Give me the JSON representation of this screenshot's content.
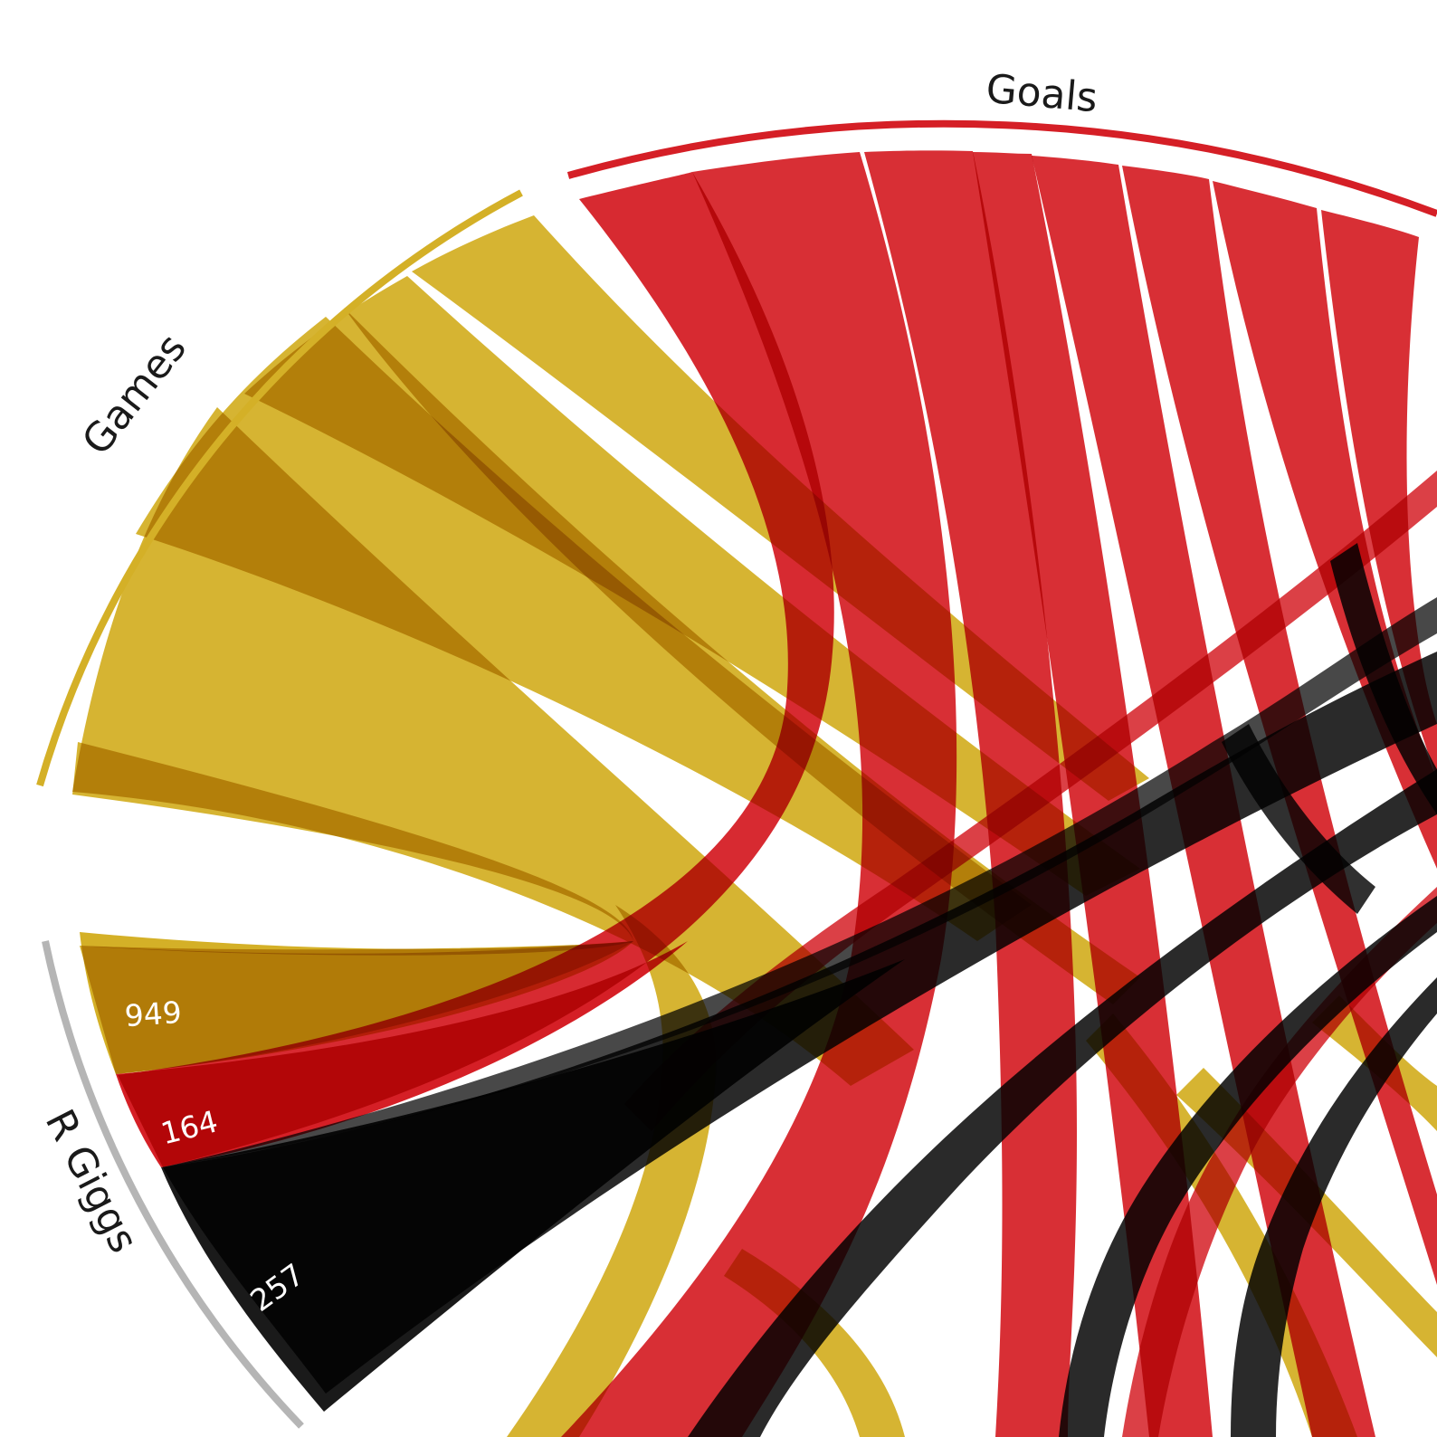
{
  "chart_data": {
    "type": "chord",
    "colors": {
      "games": "#d4b027",
      "goals": "#d51f26",
      "seasons": "#1a1a1a",
      "player_arc": "#b5b5b5",
      "background": "#ffffff"
    },
    "groups": [
      {
        "key": "games",
        "label": "Games"
      },
      {
        "key": "goals",
        "label": "Goals"
      },
      {
        "key": "r_giggs",
        "label": "R Giggs"
      }
    ],
    "player": {
      "name": "R Giggs",
      "values": [
        {
          "metric": "games",
          "value": 949,
          "label": "949"
        },
        {
          "metric": "goals",
          "value": 164,
          "label": "164"
        },
        {
          "metric": "seasons",
          "value": 257,
          "label": "257"
        }
      ]
    }
  }
}
